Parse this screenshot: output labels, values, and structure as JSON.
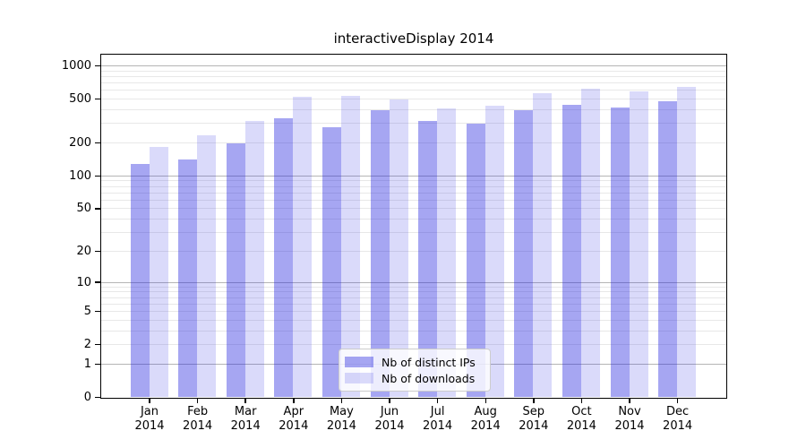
{
  "chart_data": {
    "type": "bar",
    "title": "interactiveDisplay 2014",
    "categories": [
      "Jan",
      "Feb",
      "Mar",
      "Apr",
      "May",
      "Jun",
      "Jul",
      "Aug",
      "Sep",
      "Oct",
      "Nov",
      "Dec"
    ],
    "year_label": "2014",
    "series": [
      {
        "name": "Nb of distinct IPs",
        "color": "rgba(33,33,223,0.40)",
        "values": [
          127,
          139,
          196,
          331,
          277,
          389,
          313,
          299,
          391,
          440,
          416,
          470
        ]
      },
      {
        "name": "Nb of downloads",
        "color": "rgba(33,33,223,0.17)",
        "values": [
          181,
          231,
          312,
          521,
          528,
          495,
          411,
          435,
          560,
          616,
          582,
          634
        ]
      }
    ],
    "yscale": "log1p",
    "yticks": [
      0,
      1,
      2,
      5,
      10,
      20,
      50,
      100,
      200,
      500,
      1000
    ],
    "major_gridlines": [
      1,
      10,
      100,
      1000
    ],
    "minor_gridlines": [
      2,
      3,
      4,
      5,
      6,
      7,
      8,
      9,
      20,
      30,
      40,
      50,
      60,
      70,
      80,
      90,
      200,
      300,
      400,
      500,
      600,
      700,
      800,
      900
    ],
    "ylim": [
      0,
      1250
    ],
    "grid": true,
    "legend_position": "lower center"
  }
}
